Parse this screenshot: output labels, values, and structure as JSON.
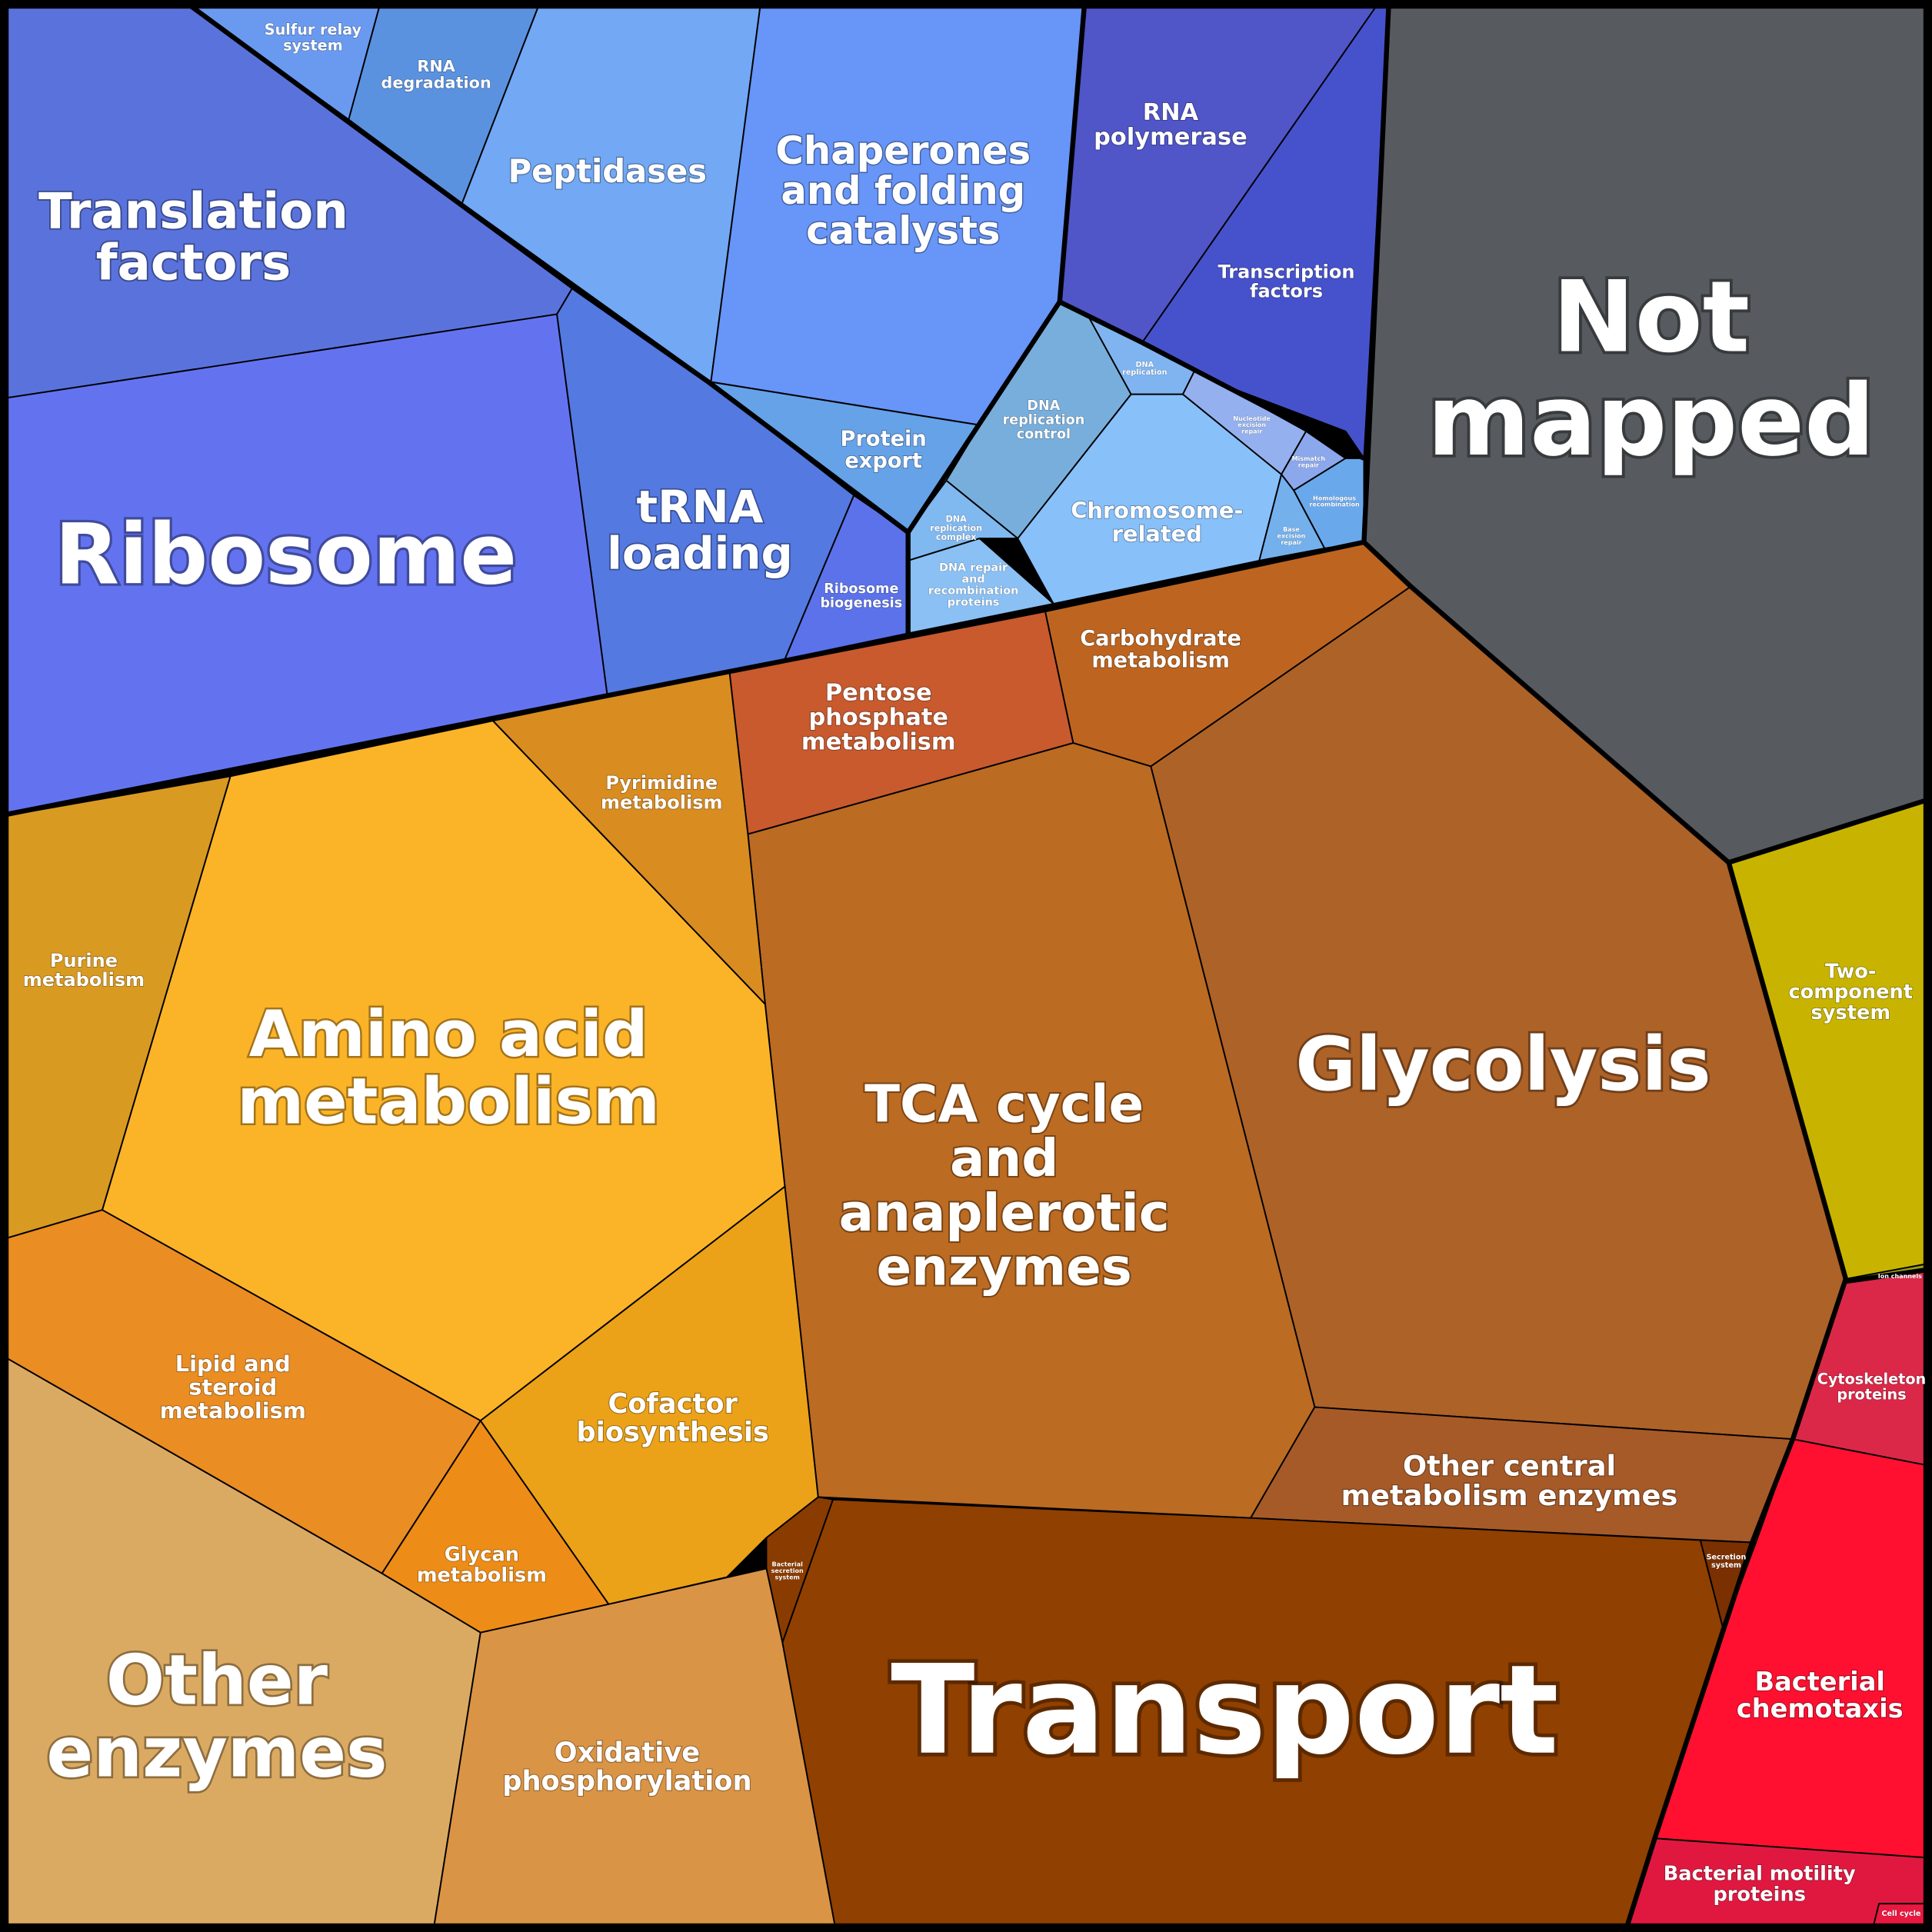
{
  "cells": [
    {
      "lines": [
        "Translation",
        "factors"
      ]
    },
    {
      "lines": [
        "Ribosome"
      ]
    },
    {
      "lines": [
        "tRNA",
        "loading"
      ]
    },
    {
      "lines": [
        "Ribosome",
        "biogenesis"
      ]
    },
    {
      "lines": [
        "Sulfur relay",
        "system"
      ]
    },
    {
      "lines": [
        "RNA",
        "degradation"
      ]
    },
    {
      "lines": [
        "Peptidases"
      ]
    },
    {
      "lines": [
        "Chaperones",
        "and folding",
        "catalysts"
      ]
    },
    {
      "lines": [
        "Protein",
        "export"
      ]
    },
    {
      "lines": [
        "RNA",
        "polymerase"
      ]
    },
    {
      "lines": [
        "Transcription",
        "factors"
      ]
    },
    {
      "lines": [
        "DNA",
        "replication",
        "control"
      ]
    },
    {
      "lines": [
        "DNA",
        "replication"
      ]
    },
    {
      "lines": [
        "DNA",
        "replication",
        "complex"
      ]
    },
    {
      "lines": [
        "DNA repair",
        "and",
        "recombination",
        "proteins"
      ]
    },
    {
      "lines": [
        "Chromosome-",
        "related"
      ]
    },
    {
      "lines": [
        "Nucleotide",
        "excision",
        "repair"
      ]
    },
    {
      "lines": [
        "Mismatch",
        "repair"
      ]
    },
    {
      "lines": [
        "Homologous",
        "recombination"
      ]
    },
    {
      "lines": [
        "Base",
        "excision",
        "repair"
      ]
    },
    {
      "lines": [
        "Not",
        "mapped"
      ]
    },
    {
      "lines": [
        "Two-",
        "component",
        "system"
      ]
    },
    {
      "lines": [
        "Ion channels"
      ]
    },
    {
      "lines": [
        "Cytoskeleton",
        "proteins"
      ]
    },
    {
      "lines": [
        "Bacterial",
        "chemotaxis"
      ]
    },
    {
      "lines": [
        "Bacterial motility",
        "proteins"
      ]
    },
    {
      "lines": [
        "Cell cycle"
      ]
    },
    {
      "lines": [
        "Carbohydrate",
        "metabolism"
      ]
    },
    {
      "lines": [
        "Pentose",
        "phosphate",
        "metabolism"
      ]
    },
    {
      "lines": [
        "Glycolysis"
      ]
    },
    {
      "lines": [
        "TCA cycle",
        "and",
        "anaplerotic",
        "enzymes"
      ]
    },
    {
      "lines": [
        "Other central",
        "metabolism enzymes"
      ]
    },
    {
      "lines": [
        "Transport"
      ]
    },
    {
      "lines": [
        "Secretion",
        "system"
      ]
    },
    {
      "lines": [
        "Bacterial",
        "secretion",
        "system"
      ]
    },
    {
      "lines": [
        "Pyrimidine",
        "metabolism"
      ]
    },
    {
      "lines": [
        "Amino acid",
        "metabolism"
      ]
    },
    {
      "lines": [
        "Purine",
        "metabolism"
      ]
    },
    {
      "lines": [
        "Lipid and",
        "steroid",
        "metabolism"
      ]
    },
    {
      "lines": [
        "Glycan",
        "metabolism"
      ]
    },
    {
      "lines": [
        "Cofactor",
        "biosynthesis"
      ]
    },
    {
      "lines": [
        "Other",
        "enzymes"
      ]
    },
    {
      "lines": [
        "Oxidative",
        "phosphorylation"
      ]
    }
  ]
}
